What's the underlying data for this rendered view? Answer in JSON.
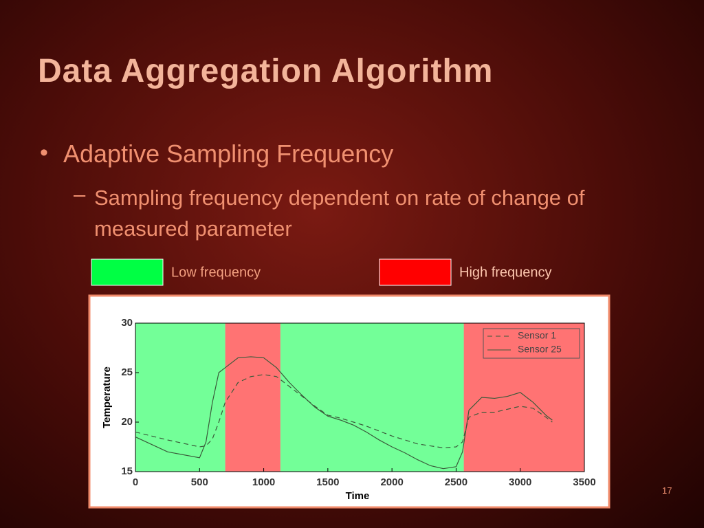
{
  "slide": {
    "title": "Data Aggregation Algorithm",
    "bullets": [
      {
        "marker": "•",
        "text": "Adaptive Sampling Frequency",
        "children": [
          {
            "marker": "–",
            "text": "Sampling frequency dependent on rate of change of measured parameter"
          }
        ]
      }
    ],
    "page_number": "17"
  },
  "chart_data": {
    "type": "line",
    "xlabel": "Time",
    "ylabel": "Temperature",
    "xlim": [
      0,
      3500
    ],
    "xticks": [
      0,
      500,
      1000,
      1500,
      2000,
      2500,
      3000,
      3500
    ],
    "ylim": [
      15,
      30
    ],
    "yticks": [
      15,
      20,
      25,
      30
    ],
    "legend": "upper right",
    "bands": [
      {
        "name": "Low frequency",
        "color": "#00ff44",
        "spans": [
          [
            0,
            700
          ],
          [
            1130,
            2560
          ]
        ]
      },
      {
        "name": "High frequency",
        "color": "#ff0000",
        "spans": [
          [
            700,
            1130
          ],
          [
            2560,
            3500
          ]
        ]
      }
    ],
    "x": [
      0,
      250,
      500,
      550,
      600,
      650,
      700,
      800,
      900,
      1000,
      1100,
      1200,
      1300,
      1400,
      1500,
      1600,
      1700,
      1800,
      1900,
      2000,
      2100,
      2200,
      2300,
      2400,
      2500,
      2550,
      2600,
      2700,
      2800,
      2900,
      3000,
      3100,
      3200,
      3250
    ],
    "series": [
      {
        "name": "Sensor 1",
        "color": "#3a5a3a",
        "dashed": true,
        "values": [
          19,
          18.2,
          17.5,
          17.6,
          18.3,
          20,
          22,
          24,
          24.6,
          24.8,
          24.6,
          23.6,
          22.6,
          21.6,
          20.7,
          20.4,
          20,
          19.6,
          19.1,
          18.6,
          18.2,
          17.8,
          17.6,
          17.4,
          17.5,
          18,
          20.5,
          21,
          21,
          21.3,
          21.6,
          21.4,
          20.5,
          20
        ]
      },
      {
        "name": "Sensor 25",
        "color": "#3a5a3a",
        "dashed": false,
        "values": [
          18.5,
          17,
          16.4,
          18,
          22,
          25,
          25.5,
          26.5,
          26.6,
          26.5,
          25.5,
          24,
          22.7,
          21.5,
          20.6,
          20.2,
          19.7,
          19,
          18.2,
          17.5,
          16.9,
          16.2,
          15.6,
          15.3,
          15.5,
          17,
          21.2,
          22.5,
          22.4,
          22.6,
          23,
          22,
          20.7,
          20.2
        ]
      }
    ]
  }
}
